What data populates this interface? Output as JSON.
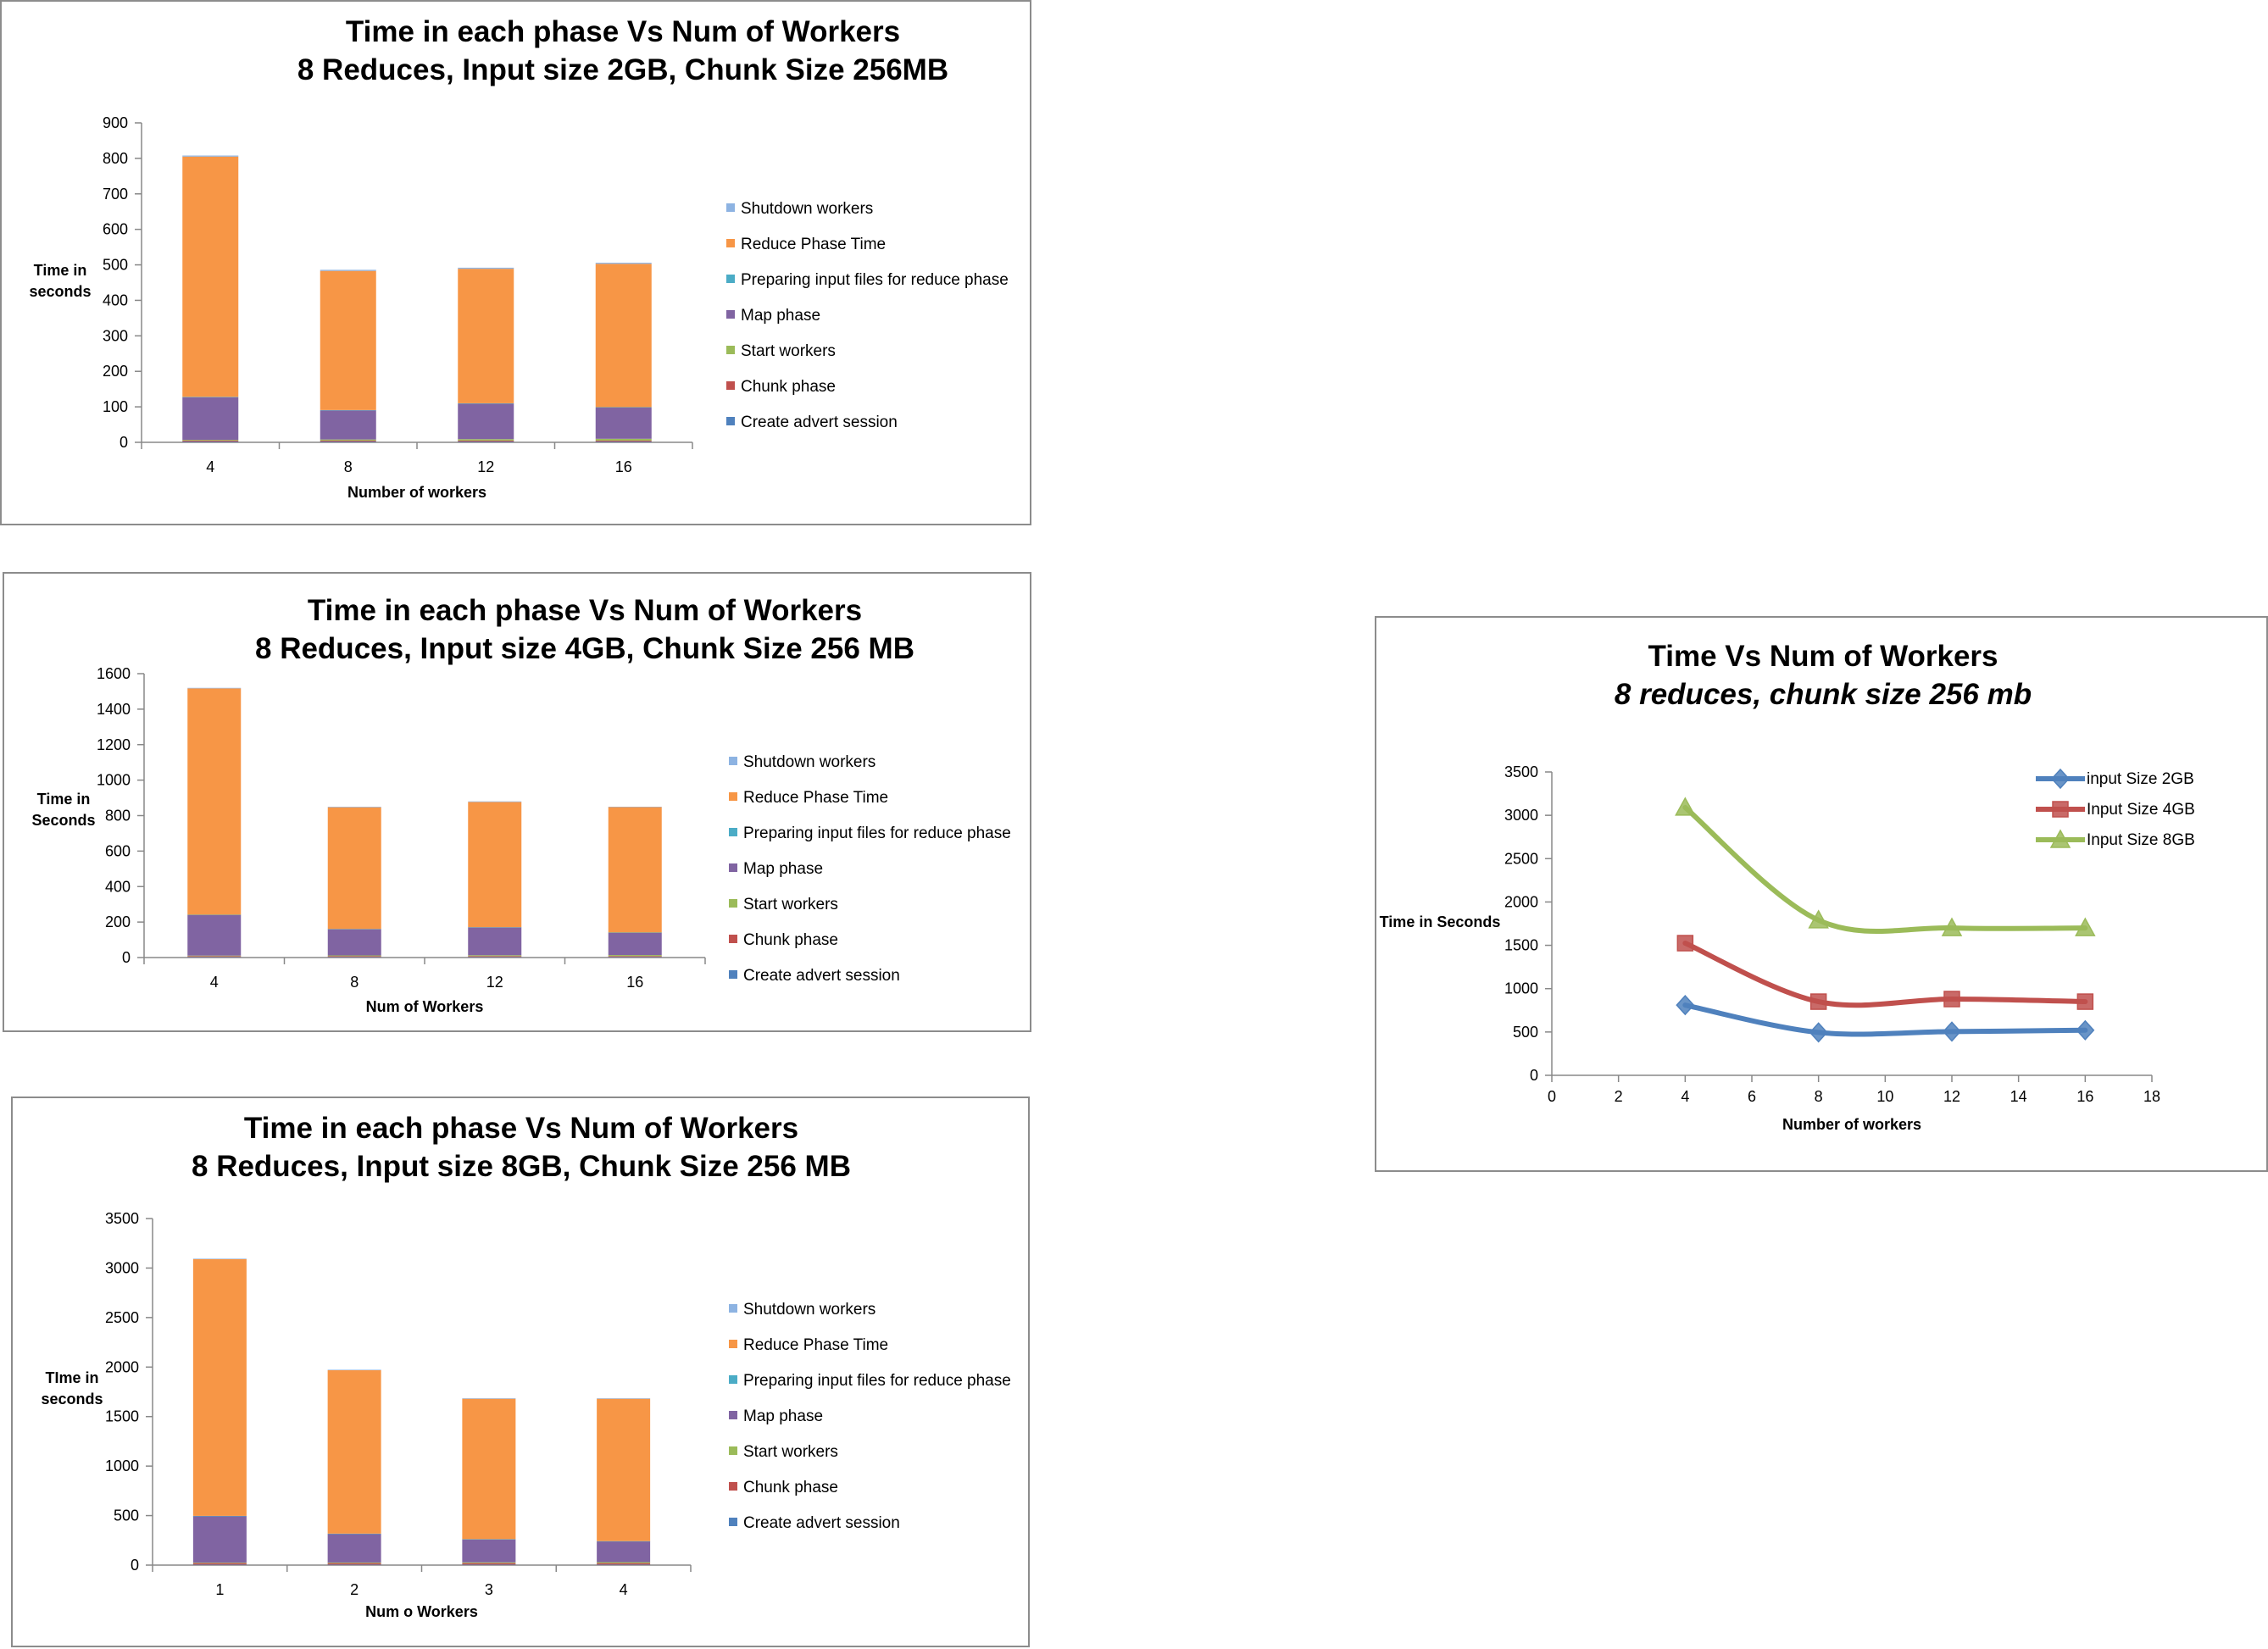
{
  "chart_data": [
    {
      "id": "c1",
      "type": "bar",
      "stacked": true,
      "title": [
        "Time in each phase Vs Num of Workers",
        "8 Reduces, Input size 2GB, Chunk Size 256MB"
      ],
      "xlabel": "Number of workers",
      "ylabel": [
        "Time in",
        "seconds"
      ],
      "ylim": [
        0,
        900
      ],
      "yticks": [
        0,
        100,
        200,
        300,
        400,
        500,
        600,
        700,
        800,
        900
      ],
      "categories": [
        "4",
        "8",
        "12",
        "16"
      ],
      "legend_position": "right",
      "series": [
        {
          "name": "Create  advert session",
          "color": "#4f81bd",
          "values": [
            2,
            2,
            2,
            2
          ]
        },
        {
          "name": "Chunk phase",
          "color": "#c0504d",
          "values": [
            3,
            3,
            3,
            3
          ]
        },
        {
          "name": "Start workers",
          "color": "#9bbb59",
          "values": [
            2,
            3,
            4,
            5
          ]
        },
        {
          "name": "Map phase",
          "color": "#8064a2",
          "values": [
            120,
            82,
            100,
            88
          ]
        },
        {
          "name": "Preparing input files for reduce phase",
          "color": "#4bacc6",
          "values": [
            1,
            1,
            1,
            1
          ]
        },
        {
          "name": "Reduce Phase Time",
          "color": "#f79646",
          "values": [
            677,
            392,
            379,
            404
          ]
        },
        {
          "name": "Shutdown workers",
          "color": "#8db3e2",
          "values": [
            3,
            3,
            3,
            3
          ]
        }
      ]
    },
    {
      "id": "c2",
      "type": "bar",
      "stacked": true,
      "title": [
        "Time in each phase Vs Num of Workers",
        "8 Reduces, Input size 4GB, Chunk Size 256 MB"
      ],
      "xlabel": "Num of Workers",
      "ylabel": [
        "Time in",
        "Seconds"
      ],
      "ylim": [
        0,
        1600
      ],
      "yticks": [
        0,
        200,
        400,
        600,
        800,
        1000,
        1200,
        1400,
        1600
      ],
      "categories": [
        "4",
        "8",
        "12",
        "16"
      ],
      "legend_position": "right",
      "series": [
        {
          "name": "Create  advert session",
          "color": "#4f81bd",
          "values": [
            3,
            3,
            3,
            3
          ]
        },
        {
          "name": "Chunk phase",
          "color": "#c0504d",
          "values": [
            5,
            5,
            5,
            5
          ]
        },
        {
          "name": "Start workers",
          "color": "#9bbb59",
          "values": [
            3,
            4,
            5,
            6
          ]
        },
        {
          "name": "Map phase",
          "color": "#8064a2",
          "values": [
            229,
            148,
            157,
            126
          ]
        },
        {
          "name": "Preparing input files for reduce phase",
          "color": "#4bacc6",
          "values": [
            1,
            1,
            1,
            1
          ]
        },
        {
          "name": "Reduce Phase Time",
          "color": "#f79646",
          "values": [
            1276,
            686,
            706,
            707
          ]
        },
        {
          "name": "Shutdown workers",
          "color": "#8db3e2",
          "values": [
            3,
            3,
            3,
            2
          ]
        }
      ]
    },
    {
      "id": "c3",
      "type": "bar",
      "stacked": true,
      "title": [
        "Time in each phase Vs Num of Workers",
        "8 Reduces, Input size 8GB, Chunk Size 256 MB"
      ],
      "xlabel": "Num o Workers",
      "ylabel": [
        "TIme in",
        "seconds"
      ],
      "ylim": [
        0,
        3500
      ],
      "yticks": [
        0,
        500,
        1000,
        1500,
        2000,
        2500,
        3000,
        3500
      ],
      "categories": [
        "1",
        "2",
        "3",
        "4"
      ],
      "legend_position": "right",
      "series": [
        {
          "name": "Create  advert session",
          "color": "#4f81bd",
          "values": [
            5,
            5,
            5,
            5
          ]
        },
        {
          "name": "Chunk phase",
          "color": "#c0504d",
          "values": [
            15,
            15,
            15,
            15
          ]
        },
        {
          "name": "Start workers",
          "color": "#9bbb59",
          "values": [
            5,
            6,
            8,
            10
          ]
        },
        {
          "name": "Map phase",
          "color": "#8064a2",
          "values": [
            470,
            290,
            232,
            210
          ]
        },
        {
          "name": "Preparing input files for reduce phase",
          "color": "#4bacc6",
          "values": [
            2,
            2,
            2,
            2
          ]
        },
        {
          "name": "Reduce Phase Time",
          "color": "#f79646",
          "values": [
            2593,
            1650,
            1418,
            1438
          ]
        },
        {
          "name": "Shutdown workers",
          "color": "#8db3e2",
          "values": [
            5,
            5,
            5,
            5
          ]
        }
      ]
    },
    {
      "id": "c4",
      "type": "line",
      "smooth": true,
      "title": [
        "Time Vs Num of Workers",
        "8 reduces, chunk size 256 mb"
      ],
      "xlabel": "Number of workers",
      "ylabel": [
        "Time in Seconds"
      ],
      "xlim": [
        0,
        18
      ],
      "xticks": [
        0,
        2,
        4,
        6,
        8,
        10,
        12,
        14,
        16,
        18
      ],
      "ylim": [
        0,
        3500
      ],
      "yticks": [
        0,
        500,
        1000,
        1500,
        2000,
        2500,
        3000,
        3500
      ],
      "x": [
        4,
        8,
        12,
        16
      ],
      "legend_position": "top-right",
      "series": [
        {
          "name": "input Size 2GB",
          "color": "#4f81bd",
          "marker": "diamond",
          "values": [
            810,
            495,
            505,
            520
          ]
        },
        {
          "name": "Input Size 4GB",
          "color": "#c0504d",
          "marker": "square",
          "values": [
            1525,
            850,
            880,
            850
          ]
        },
        {
          "name": "Input Size 8GB",
          "color": "#9bbb59",
          "marker": "triangle",
          "values": [
            3090,
            1790,
            1700,
            1700
          ]
        }
      ]
    }
  ]
}
